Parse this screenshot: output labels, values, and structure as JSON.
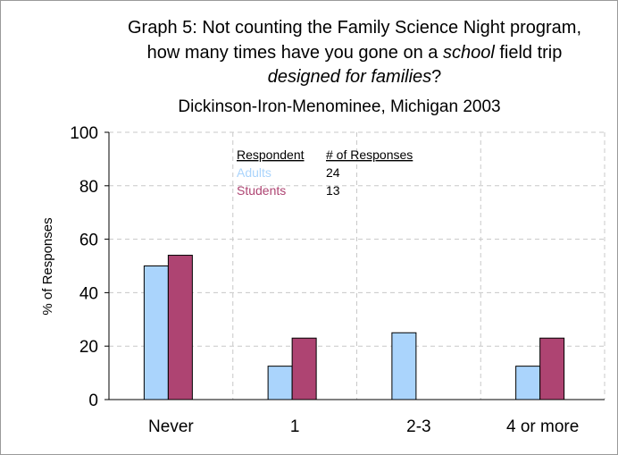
{
  "chart_data": {
    "type": "bar",
    "title": {
      "line1": "Graph 5: Not counting the Family Science Night program,",
      "line2_pre": "how many times have you gone on a ",
      "line2_em": "school",
      "line2_post": " field trip",
      "line3_em": "designed for families",
      "line3_post": "?"
    },
    "subtitle": "Dickinson-Iron-Menominee, Michigan 2003",
    "xlabel": "",
    "ylabel": "% of Responses",
    "ylim": [
      0,
      100
    ],
    "yticks": [
      0,
      20,
      40,
      60,
      80,
      100
    ],
    "grid": true,
    "categories": [
      "Never",
      "1",
      "2-3",
      "4 or more"
    ],
    "series": [
      {
        "name": "Adults",
        "color": "#aad4fc",
        "values": [
          50,
          12.5,
          25,
          12.5
        ]
      },
      {
        "name": "Students",
        "color": "#ae4472",
        "values": [
          54,
          23,
          0,
          23
        ]
      }
    ],
    "legend": {
      "placement": "top-center",
      "header_respondent": "Respondent",
      "header_count": "# of Responses",
      "rows": [
        {
          "label": "Adults",
          "count": "24",
          "color": "#aad4fc"
        },
        {
          "label": "Students",
          "count": "13",
          "color": "#ae4472"
        }
      ]
    }
  }
}
